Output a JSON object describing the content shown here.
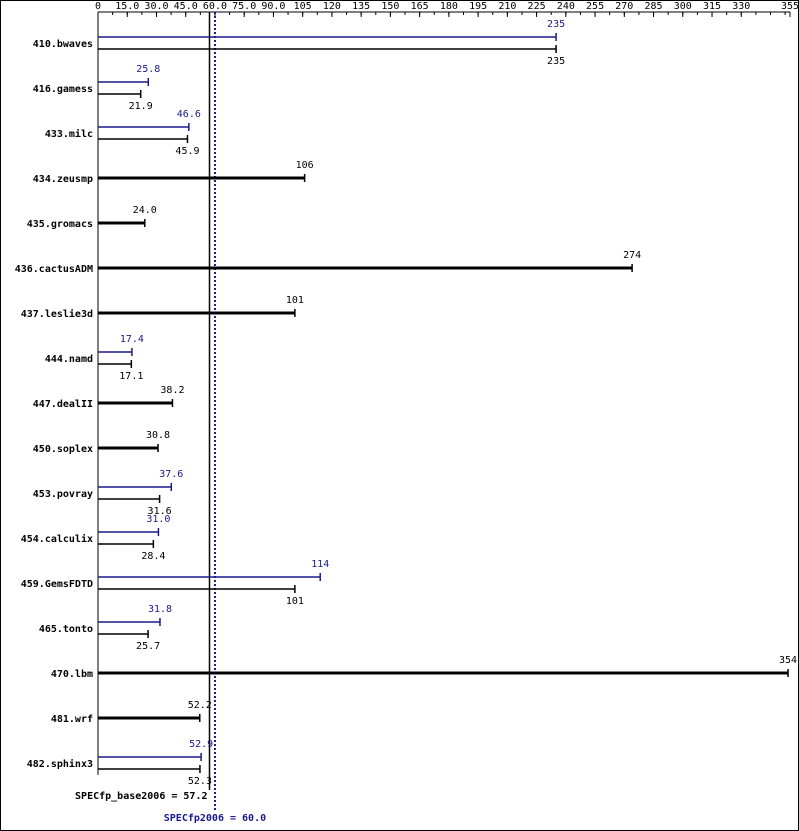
{
  "chart_data": {
    "type": "bar",
    "orientation": "horizontal",
    "categories": [
      "410.bwaves",
      "416.gamess",
      "433.milc",
      "434.zeusmp",
      "435.gromacs",
      "436.cactusADM",
      "437.leslie3d",
      "444.namd",
      "447.dealII",
      "450.soplex",
      "453.povray",
      "454.calculix",
      "459.GemsFDTD",
      "465.tonto",
      "470.lbm",
      "481.wrf",
      "482.sphinx3"
    ],
    "series": [
      {
        "color": "#1a1a8c",
        "values": [
          235,
          25.8,
          46.6,
          null,
          null,
          null,
          null,
          17.4,
          null,
          null,
          37.6,
          31.0,
          114,
          31.8,
          null,
          null,
          52.9
        ],
        "value_labels": [
          "235",
          "25.8",
          "46.6",
          null,
          null,
          null,
          null,
          "17.4",
          null,
          null,
          "37.6",
          "31.0",
          "114",
          "31.8",
          null,
          null,
          "52.9"
        ]
      },
      {
        "color": "#000000",
        "values": [
          235,
          21.9,
          45.9,
          106,
          24.0,
          274,
          101,
          17.1,
          38.2,
          30.8,
          31.6,
          28.4,
          101,
          25.7,
          354,
          52.2,
          52.3
        ],
        "value_labels": [
          "235",
          "21.9",
          "45.9",
          "106",
          "24.0",
          "274",
          "101",
          "17.1",
          "38.2",
          "30.8",
          "31.6",
          "28.4",
          "101",
          "25.7",
          "354",
          "52.2",
          "52.3"
        ]
      }
    ],
    "xlim": [
      0,
      355
    ],
    "xticks": [
      0,
      {
        "value": 15,
        "label": "15.0"
      },
      {
        "value": 30,
        "label": "30.0"
      },
      {
        "value": 45,
        "label": "45.0"
      },
      {
        "value": 60,
        "label": "60.0"
      },
      {
        "value": 75,
        "label": "75.0"
      },
      {
        "value": 90,
        "label": "90.0"
      },
      105,
      120,
      135,
      150,
      165,
      180,
      195,
      210,
      225,
      240,
      255,
      270,
      285,
      300,
      315,
      330,
      355
    ],
    "reference_lines": [
      {
        "label": "SPECfp_base2006 = 57.2",
        "value": 57.2,
        "color": "#000000",
        "style": "solid"
      },
      {
        "label": "SPECfp2006 = 60.0",
        "value": 60.0,
        "color": "#1a1a8c",
        "style": "dotted"
      }
    ]
  }
}
